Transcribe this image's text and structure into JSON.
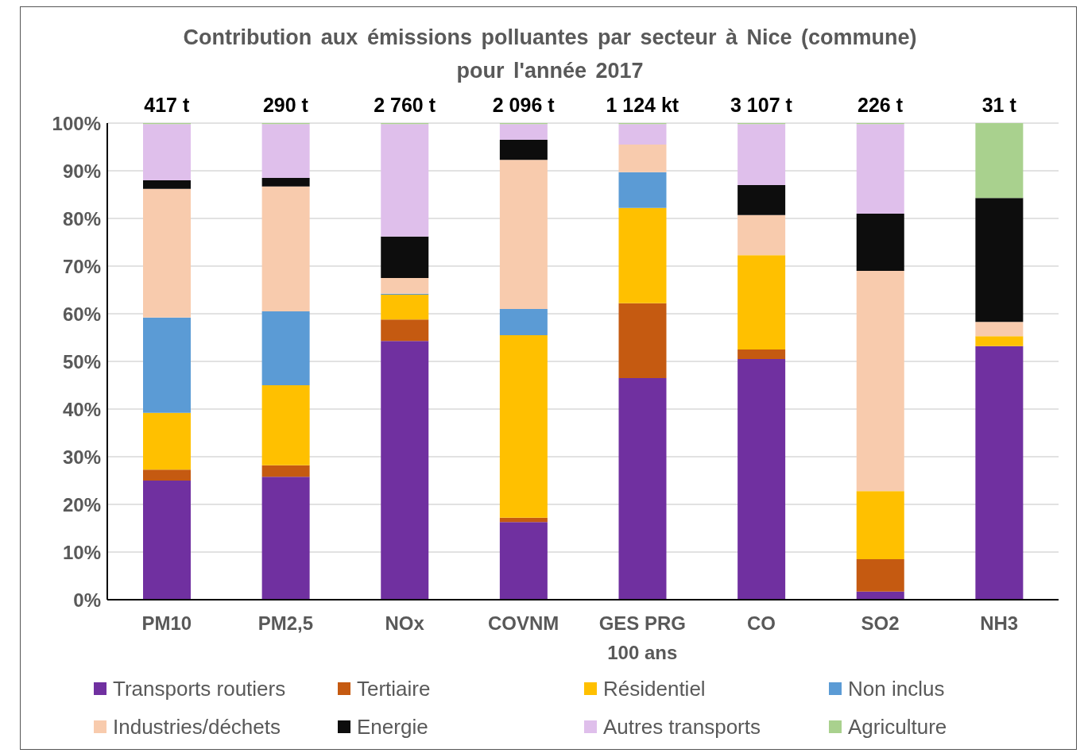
{
  "chart_data": {
    "type": "bar",
    "stacked": true,
    "title": "Contribution aux émissions polluantes par secteur à Nice (commune)\npour l'année 2017",
    "categories": [
      "PM10",
      "PM2,5",
      "NOx",
      "COVNM",
      "GES PRG 100 ans",
      "CO",
      "SO2",
      "NH3"
    ],
    "annotations": [
      {
        "text": "417 t",
        "x": "PM10",
        "y": 100
      },
      {
        "text": "290 t",
        "x": "PM2,5",
        "y": 100
      },
      {
        "text": "2 760 t",
        "x": "NOx",
        "y": 100
      },
      {
        "text": "2 096 t",
        "x": "COVNM",
        "y": 100
      },
      {
        "text": "1 124 kt",
        "x": "GES PRG 100 ans",
        "y": 100
      },
      {
        "text": "3 107 t",
        "x": "CO",
        "y": 100
      },
      {
        "text": "226 t",
        "x": "SO2",
        "y": 100
      },
      {
        "text": "31 t",
        "x": "NH3",
        "y": 100
      }
    ],
    "series": [
      {
        "name": "Transports routiers",
        "color": "#7030a0",
        "values": [
          25.0,
          25.8,
          54.3,
          16.3,
          46.5,
          50.5,
          1.7,
          53.2
        ]
      },
      {
        "name": "Tertiaire",
        "color": "#c55a11",
        "values": [
          2.3,
          2.4,
          4.5,
          0.9,
          15.7,
          2.0,
          6.8,
          0
        ]
      },
      {
        "name": "Résidentiel",
        "color": "#ffc000",
        "values": [
          11.9,
          16.8,
          5.2,
          38.3,
          20.0,
          19.8,
          14.3,
          2.1
        ]
      },
      {
        "name": "Non inclus",
        "color": "#5b9bd5",
        "values": [
          20.0,
          15.5,
          0.2,
          5.5,
          7.5,
          0,
          0,
          0
        ]
      },
      {
        "name": "Industries/déchets",
        "color": "#f8cbad",
        "values": [
          27.0,
          26.2,
          3.3,
          31.3,
          5.8,
          8.4,
          46.2,
          3.0
        ]
      },
      {
        "name": "Energie",
        "color": "#0d0d0d",
        "values": [
          1.8,
          1.8,
          8.7,
          4.2,
          0,
          6.3,
          12.0,
          26.0
        ]
      },
      {
        "name": "Autres transports",
        "color": "#dfbfeb",
        "values": [
          11.8,
          11.3,
          23.6,
          3.3,
          4.3,
          12.8,
          18.8,
          0
        ]
      },
      {
        "name": "Agriculture",
        "color": "#a9d18e",
        "values": [
          0.2,
          0.2,
          0.2,
          0.2,
          0.2,
          0.2,
          0.2,
          15.7
        ]
      }
    ],
    "ylim": [
      0,
      100
    ],
    "yticks": [
      {
        "value": 0,
        "label": "0%"
      },
      {
        "value": 10,
        "label": "10%"
      },
      {
        "value": 20,
        "label": "20%"
      },
      {
        "value": 30,
        "label": "30%"
      },
      {
        "value": 40,
        "label": "40%"
      },
      {
        "value": 50,
        "label": "50%"
      },
      {
        "value": 60,
        "label": "60%"
      },
      {
        "value": 70,
        "label": "70%"
      },
      {
        "value": 80,
        "label": "80%"
      },
      {
        "value": 90,
        "label": "90%"
      },
      {
        "value": 100,
        "label": "100%"
      }
    ],
    "grid": "y",
    "legend": "bottom"
  }
}
